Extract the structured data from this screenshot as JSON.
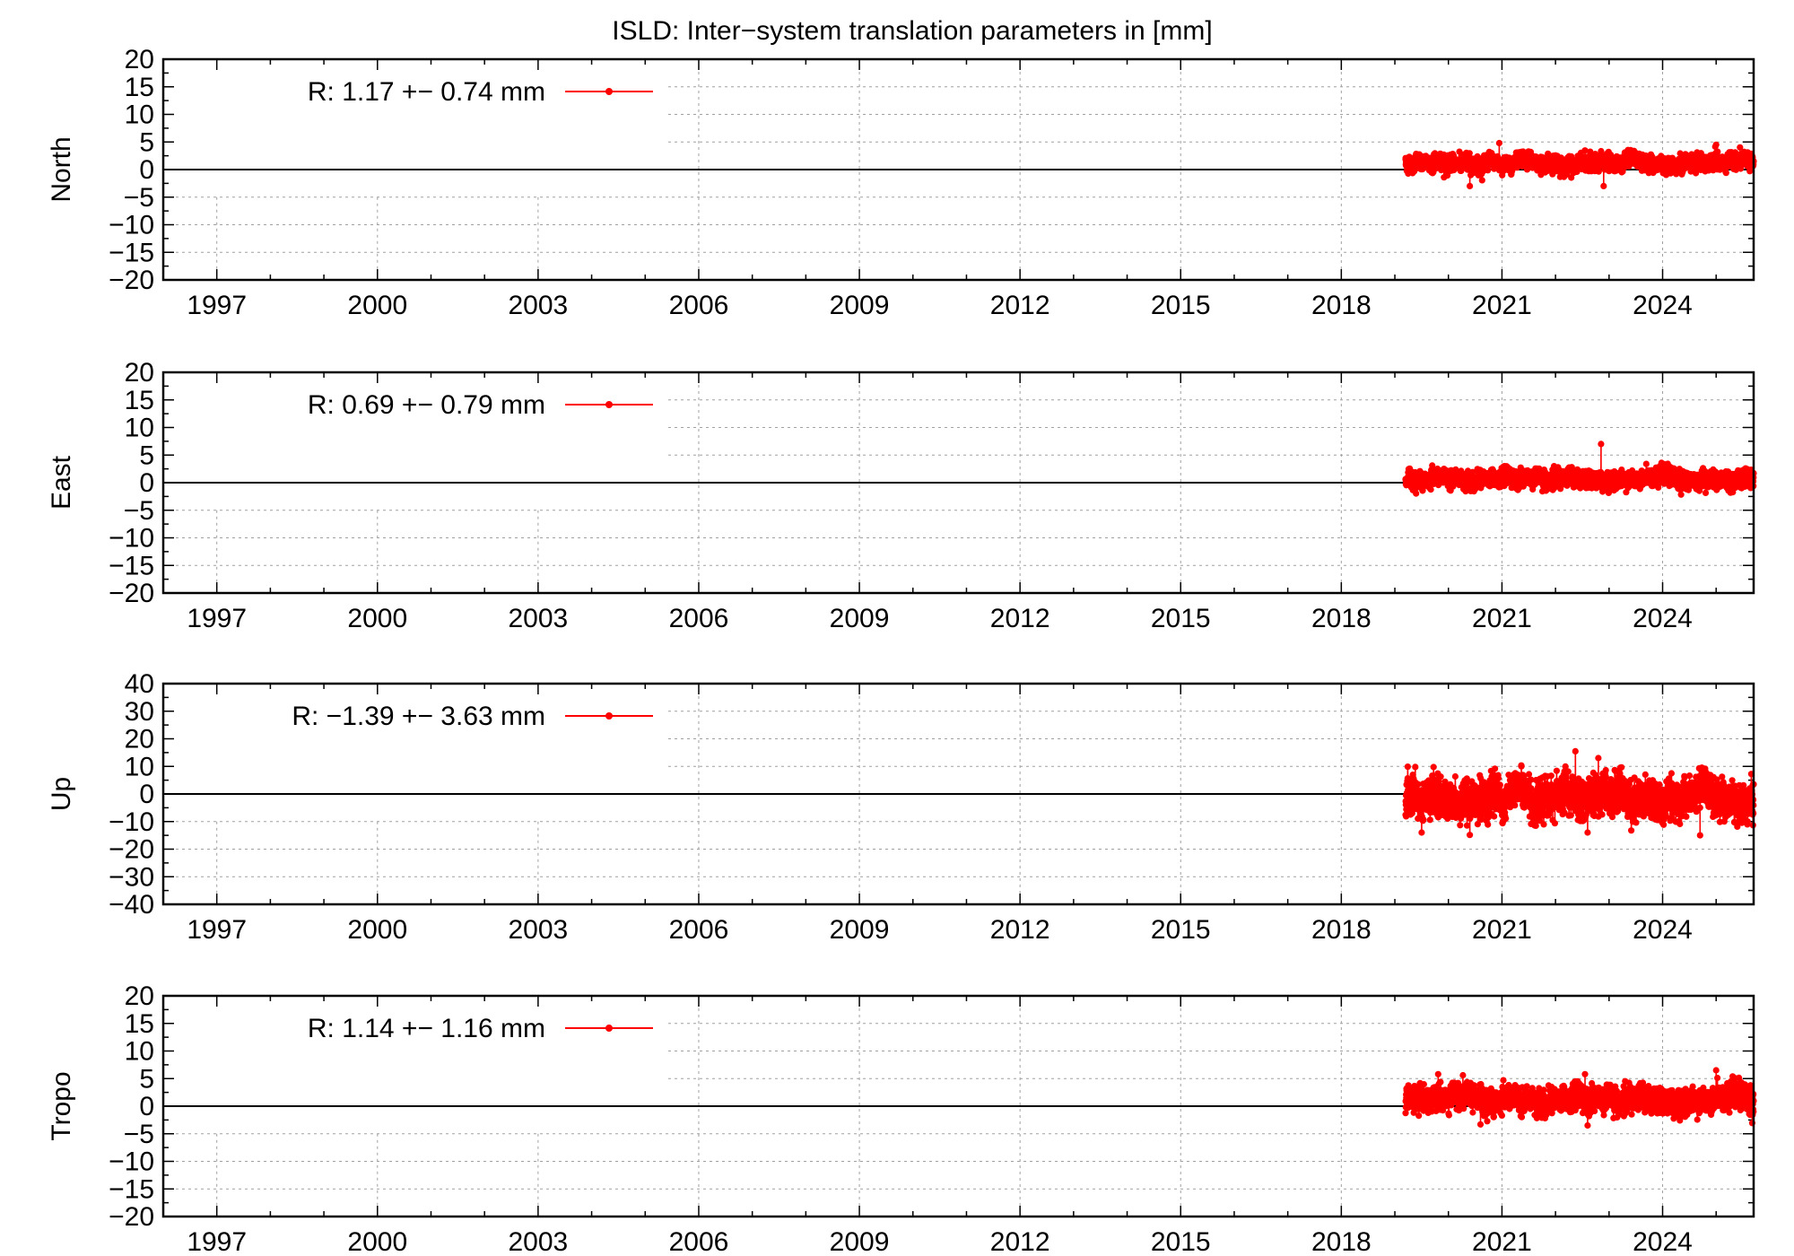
{
  "colors": {
    "series": "#ff0000",
    "frame": "#000000",
    "grid": "#a0a0a0"
  },
  "chart_data": {
    "type": "line",
    "title": "ISLD: Inter−system translation parameters in [mm]",
    "xlabel": "",
    "x_ticks": [
      "1997",
      "2000",
      "2003",
      "2006",
      "2009",
      "2012",
      "2015",
      "2018",
      "2021",
      "2024"
    ],
    "x_tick_values": [
      1997,
      2000,
      2003,
      2006,
      2009,
      2012,
      2015,
      2018,
      2021,
      2024
    ],
    "xlim": [
      1996,
      2025.7
    ],
    "x_range_description": "data span approx. 2019.2 to 2025.7, daily values",
    "grid": true,
    "legend_position": "top-left",
    "panels": [
      {
        "ylabel": "North",
        "ylim": [
          -20,
          20
        ],
        "y_ticks": [
          20,
          15,
          10,
          5,
          0,
          -5,
          -10,
          -15,
          -20
        ],
        "y_tick_labels": [
          "20",
          "15",
          "10",
          "5",
          "0",
          "−5",
          "−10",
          "−15",
          "−20"
        ],
        "legend_text": "R:   1.17 +− 0.74 mm",
        "series": {
          "x_start": 2019.2,
          "x_end": 2025.7,
          "mean": 1.17,
          "sigma": 0.74,
          "notable_points": [
            {
              "x": 2020.95,
              "y": 4.8
            },
            {
              "x": 2020.4,
              "y": -3.0
            },
            {
              "x": 2022.9,
              "y": -3.0
            },
            {
              "x": 2025.0,
              "y": 4.5
            }
          ]
        }
      },
      {
        "ylabel": "East",
        "ylim": [
          -20,
          20
        ],
        "y_ticks": [
          20,
          15,
          10,
          5,
          0,
          -5,
          -10,
          -15,
          -20
        ],
        "y_tick_labels": [
          "20",
          "15",
          "10",
          "5",
          "0",
          "−5",
          "−10",
          "−15",
          "−20"
        ],
        "legend_text": "R:   0.69 +− 0.79 mm",
        "series": {
          "x_start": 2019.2,
          "x_end": 2025.7,
          "mean": 0.69,
          "sigma": 0.79,
          "notable_points": [
            {
              "x": 2022.85,
              "y": 7.0
            }
          ]
        }
      },
      {
        "ylabel": "Up",
        "ylim": [
          -40,
          40
        ],
        "y_ticks": [
          40,
          30,
          20,
          10,
          0,
          -10,
          -20,
          -30,
          -40
        ],
        "y_tick_labels": [
          "40",
          "30",
          "20",
          "10",
          "0",
          "−10",
          "−20",
          "−30",
          "−40"
        ],
        "legend_text": "R:  −1.39 +− 3.63 mm",
        "series": {
          "x_start": 2019.2,
          "x_end": 2025.7,
          "mean": -1.39,
          "sigma": 3.63,
          "notable_points": [
            {
              "x": 2022.8,
              "y": 13.0
            },
            {
              "x": 2019.5,
              "y": -14.0
            },
            {
              "x": 2022.6,
              "y": -14.0
            },
            {
              "x": 2024.7,
              "y": -15.0
            }
          ]
        }
      },
      {
        "ylabel": "Tropo",
        "ylim": [
          -20,
          20
        ],
        "y_ticks": [
          20,
          15,
          10,
          5,
          0,
          -5,
          -10,
          -15,
          -20
        ],
        "y_tick_labels": [
          "20",
          "15",
          "10",
          "5",
          "0",
          "−5",
          "−10",
          "−15",
          "−20"
        ],
        "legend_text": "R:   1.14 +− 1.16 mm",
        "series": {
          "x_start": 2019.2,
          "x_end": 2025.7,
          "mean": 1.14,
          "sigma": 1.16,
          "notable_points": [
            {
              "x": 2025.0,
              "y": 6.5
            },
            {
              "x": 2022.55,
              "y": 5.8
            },
            {
              "x": 2020.6,
              "y": -3.3
            },
            {
              "x": 2022.6,
              "y": -3.5
            }
          ]
        }
      }
    ]
  }
}
